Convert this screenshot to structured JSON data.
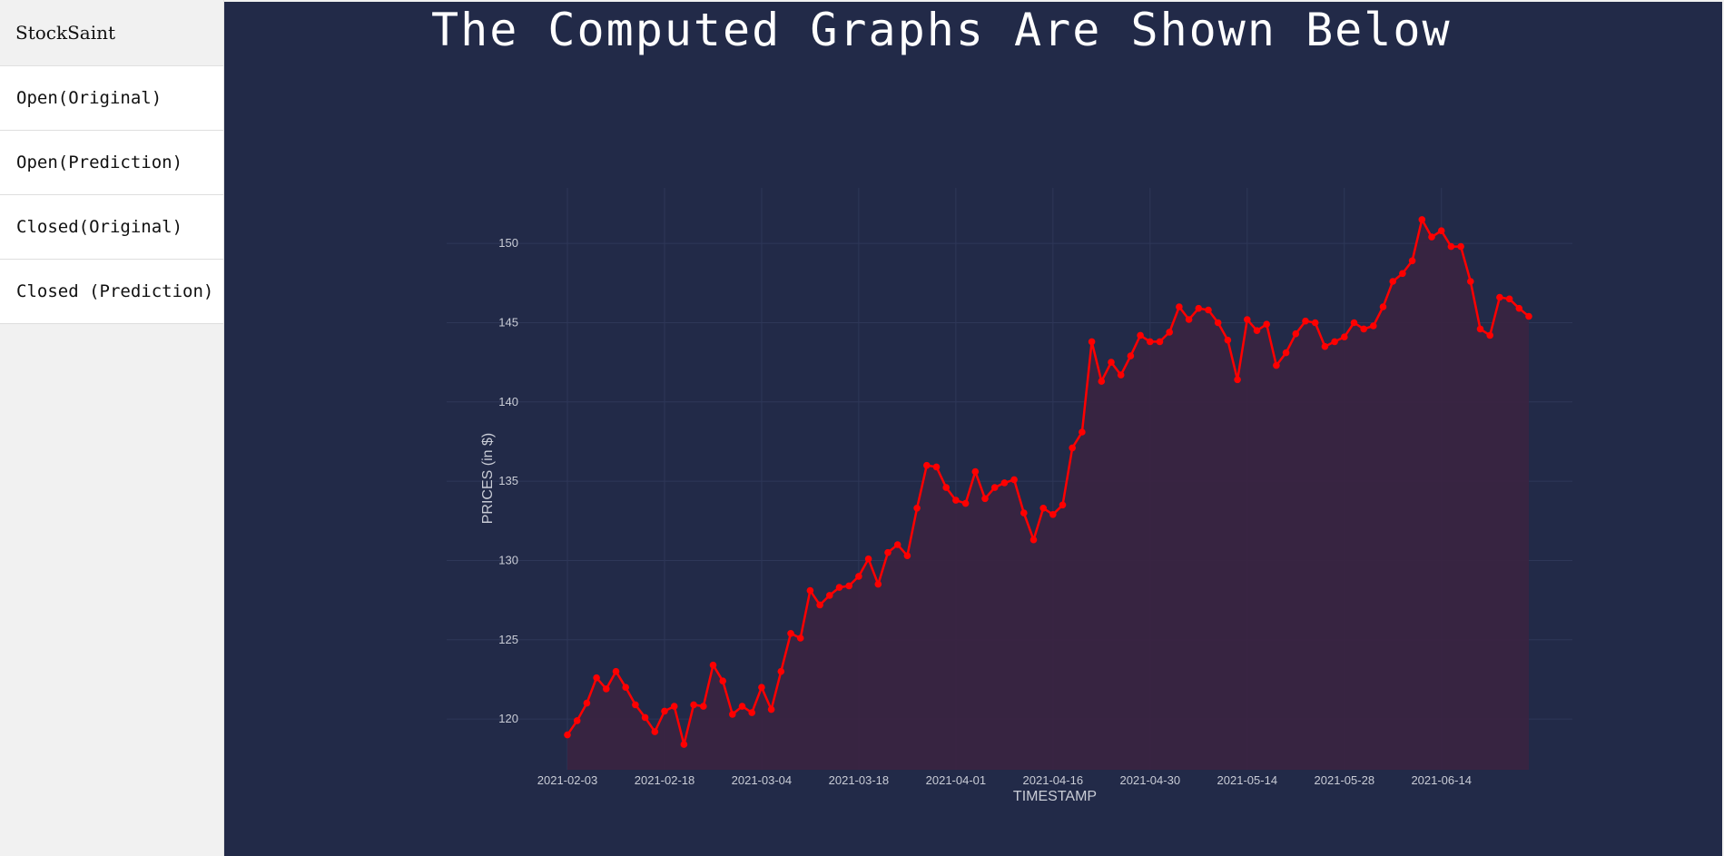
{
  "sidebar": {
    "brand": "StockSaint",
    "items": [
      {
        "label": "Open(Original)"
      },
      {
        "label": "Open(Prediction)"
      },
      {
        "label": "Closed(Original)"
      },
      {
        "label": "Closed (Prediction)"
      }
    ]
  },
  "main": {
    "title": "The Computed Graphs Are Shown Below"
  },
  "colors": {
    "background": "#222a48",
    "sidebar": "#f1f1f1",
    "line": "#ff0000",
    "area_fill": "#3a2340"
  },
  "chart_data": {
    "type": "area",
    "title": "",
    "xlabel": "TIMESTAMP",
    "ylabel": "PRICES (in $)",
    "ylim": [
      116.8,
      153.5
    ],
    "yticks": [
      120,
      125,
      130,
      135,
      140,
      145,
      150
    ],
    "xticks": [
      "2021-02-03",
      "2021-02-18",
      "2021-03-04",
      "2021-03-18",
      "2021-04-01",
      "2021-04-16",
      "2021-04-30",
      "2021-05-14",
      "2021-05-28",
      "2021-06-14"
    ],
    "xtick_index": [
      0,
      10,
      20,
      30,
      40,
      50,
      60,
      70,
      80,
      90
    ],
    "grid": true,
    "series": [
      {
        "values": [
          119.0,
          119.9,
          121.0,
          122.6,
          121.9,
          123.0,
          122.0,
          120.9,
          120.1,
          119.2,
          120.5,
          120.8,
          118.4,
          120.9,
          120.8,
          123.4,
          122.4,
          120.3,
          120.8,
          120.4,
          122.0,
          120.6,
          123.0,
          125.4,
          125.1,
          128.1,
          127.2,
          127.8,
          128.3,
          128.4,
          129.0,
          130.1,
          128.5,
          130.5,
          131.0,
          130.3,
          133.3,
          136.0,
          135.9,
          134.6,
          133.8,
          133.6,
          135.6,
          133.9,
          134.6,
          134.9,
          135.1,
          133.0,
          131.3,
          133.3,
          132.9,
          133.5,
          137.1,
          138.1,
          143.8,
          141.3,
          142.5,
          141.7,
          142.9,
          144.2,
          143.8,
          143.8,
          144.4,
          146.0,
          145.2,
          145.9,
          145.8,
          145.0,
          143.9,
          141.4,
          145.2,
          144.5,
          144.9,
          142.3,
          143.1,
          144.3,
          145.1,
          145.0,
          143.5,
          143.8,
          144.1,
          145.0,
          144.6,
          144.8,
          146.0,
          147.6,
          148.1,
          148.9,
          151.5,
          150.4,
          150.8,
          149.8,
          149.8,
          147.6,
          144.6,
          144.2,
          146.6,
          146.5,
          145.9,
          145.4
        ]
      }
    ]
  }
}
